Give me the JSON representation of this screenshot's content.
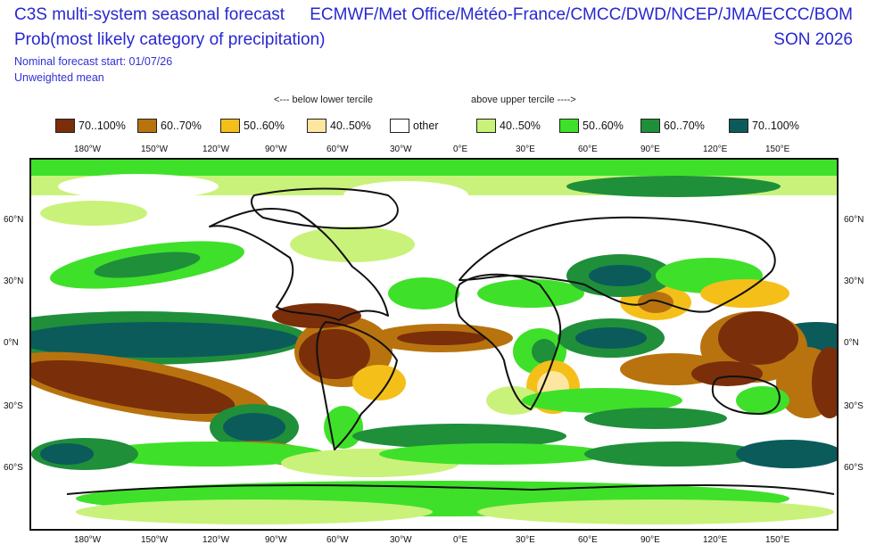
{
  "header": {
    "title_line1": "C3S multi-system seasonal forecast",
    "title_line2": "Prob(most likely category of precipitation)",
    "meta_line1": "Nominal forecast start: 01/07/26",
    "meta_line2": "Unweighted mean",
    "systems": "ECMWF/Met Office/Météo-France/CMCC/DWD/NCEP/JMA/ECCC/BOM",
    "season": "SON 2026"
  },
  "legend": {
    "below_caption": "<--- below lower tercile",
    "above_caption": "above upper tercile ---->",
    "items": [
      {
        "label": "70..100%",
        "color": "#7a2e0a"
      },
      {
        "label": "60..70%",
        "color": "#b8730f"
      },
      {
        "label": "50..60%",
        "color": "#f5bf1a"
      },
      {
        "label": "40..50%",
        "color": "#fce6a0"
      },
      {
        "label": "other",
        "color": "#ffffff"
      },
      {
        "label": "40..50%",
        "color": "#c9f27a"
      },
      {
        "label": "50..60%",
        "color": "#3fe02a"
      },
      {
        "label": "60..70%",
        "color": "#1f8f3a"
      },
      {
        "label": "70..100%",
        "color": "#0b5b5b"
      }
    ]
  },
  "axes": {
    "lon_ticks": [
      "180°W",
      "150°W",
      "120°W",
      "90°W",
      "60°W",
      "30°W",
      "0°E",
      "30°E",
      "60°E",
      "90°E",
      "120°E",
      "150°E"
    ],
    "lat_ticks": [
      "60°N",
      "30°N",
      "0°N",
      "30°S",
      "60°S"
    ]
  }
}
